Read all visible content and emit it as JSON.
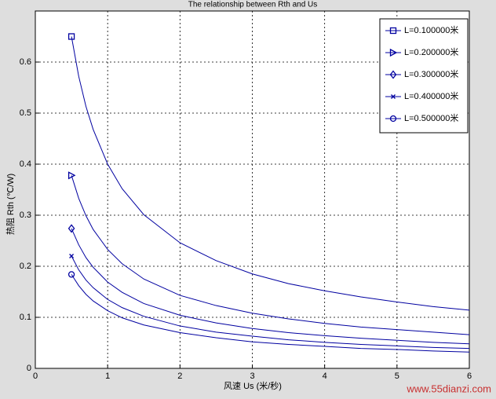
{
  "chart_data": {
    "type": "line",
    "title": "The relationship between Rth and Us",
    "x_label": "风速 Us (米/秒)",
    "y_label": "热阻 Rth (℃/W)",
    "x": [
      0.5,
      0.6,
      0.7,
      0.8,
      1,
      1.2,
      1.5,
      2,
      2.5,
      3,
      3.5,
      4,
      4.5,
      5,
      5.5,
      6
    ],
    "series": [
      {
        "name": "L=0.100000米",
        "color": "#0000a0",
        "marker": "square",
        "values": [
          0.65,
          0.572,
          0.513,
          0.468,
          0.4,
          0.352,
          0.301,
          0.246,
          0.211,
          0.185,
          0.166,
          0.152,
          0.14,
          0.13,
          0.121,
          0.114
        ]
      },
      {
        "name": "L=0.200000米",
        "color": "#0000a0",
        "marker": "triangle-right",
        "values": [
          0.378,
          0.333,
          0.299,
          0.272,
          0.233,
          0.205,
          0.175,
          0.143,
          0.123,
          0.108,
          0.097,
          0.088,
          0.081,
          0.076,
          0.071,
          0.066
        ]
      },
      {
        "name": "L=0.300000米",
        "color": "#0000a0",
        "marker": "diamond",
        "values": [
          0.274,
          0.242,
          0.217,
          0.198,
          0.169,
          0.149,
          0.127,
          0.104,
          0.089,
          0.078,
          0.07,
          0.064,
          0.059,
          0.055,
          0.051,
          0.048
        ]
      },
      {
        "name": "L=0.400000米",
        "color": "#0000a0",
        "marker": "x",
        "values": [
          0.22,
          0.193,
          0.173,
          0.158,
          0.135,
          0.119,
          0.102,
          0.083,
          0.071,
          0.063,
          0.056,
          0.051,
          0.047,
          0.044,
          0.041,
          0.039
        ]
      },
      {
        "name": "L=0.500000米",
        "color": "#0000a0",
        "marker": "circle",
        "values": [
          0.184,
          0.162,
          0.145,
          0.132,
          0.113,
          0.099,
          0.085,
          0.07,
          0.06,
          0.052,
          0.047,
          0.043,
          0.039,
          0.037,
          0.034,
          0.032
        ]
      }
    ],
    "xlim": [
      0,
      6
    ],
    "xticks": [
      0,
      1,
      2,
      3,
      4,
      5,
      6
    ],
    "ylim": [
      0,
      0.7
    ],
    "yticks": [
      0,
      0.1,
      0.2,
      0.3,
      0.4,
      0.5,
      0.6
    ],
    "grid": true,
    "legend": "upper right",
    "watermark": "www.55dianzi.com"
  }
}
